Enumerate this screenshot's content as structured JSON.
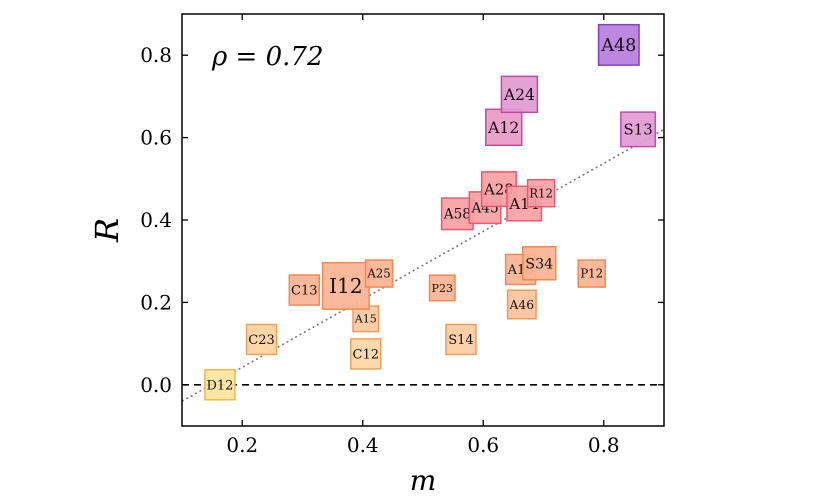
{
  "chart_data": {
    "type": "scatter",
    "title": "",
    "xlabel": "m",
    "ylabel": "R",
    "annotation": "ρ = 0.72",
    "xlim": [
      0.1,
      0.9
    ],
    "ylim": [
      -0.1,
      0.9
    ],
    "xticks": [
      0.2,
      0.4,
      0.6,
      0.8
    ],
    "yticks": [
      0.0,
      0.2,
      0.4,
      0.6,
      0.8
    ],
    "xtick_labels": [
      "0.2",
      "0.4",
      "0.6",
      "0.8"
    ],
    "ytick_labels": [
      "0.0",
      "0.2",
      "0.4",
      "0.6",
      "0.8"
    ],
    "grid": false,
    "reference_line_y": 0.0,
    "fit_line": {
      "x0": 0.1,
      "y0": -0.04,
      "x1": 0.9,
      "y1": 0.62
    },
    "points": [
      {
        "label": "D12",
        "x": 0.163,
        "y": 0.0,
        "size": 1.0,
        "color": "#fde5a0",
        "edge": "#f2b84a"
      },
      {
        "label": "C23",
        "x": 0.232,
        "y": 0.11,
        "size": 1.0,
        "color": "#fdd2a0",
        "edge": "#f0a25a"
      },
      {
        "label": "C12",
        "x": 0.405,
        "y": 0.075,
        "size": 1.0,
        "color": "#fdd6a4",
        "edge": "#f0a25a"
      },
      {
        "label": "A15",
        "x": 0.405,
        "y": 0.16,
        "size": 0.85,
        "color": "#fcc8a0",
        "edge": "#ef9b5a"
      },
      {
        "label": "S14",
        "x": 0.563,
        "y": 0.11,
        "size": 1.0,
        "color": "#fdcca0",
        "edge": "#ef9b5a"
      },
      {
        "label": "C13",
        "x": 0.303,
        "y": 0.23,
        "size": 1.0,
        "color": "#fbb394",
        "edge": "#ee8a55"
      },
      {
        "label": "I12",
        "x": 0.372,
        "y": 0.24,
        "size": 1.55,
        "color": "#fbb394",
        "edge": "#ee8a55"
      },
      {
        "label": "A25",
        "x": 0.427,
        "y": 0.27,
        "size": 0.9,
        "color": "#fbb394",
        "edge": "#ee8a55"
      },
      {
        "label": "P23",
        "x": 0.532,
        "y": 0.235,
        "size": 0.85,
        "color": "#fbb394",
        "edge": "#ee8a55"
      },
      {
        "label": "A46",
        "x": 0.664,
        "y": 0.195,
        "size": 0.95,
        "color": "#fcc2a0",
        "edge": "#ef9b5a"
      },
      {
        "label": "A18",
        "x": 0.662,
        "y": 0.28,
        "size": 1.0,
        "color": "#fbb394",
        "edge": "#ee8a55"
      },
      {
        "label": "S34",
        "x": 0.693,
        "y": 0.295,
        "size": 1.1,
        "color": "#fbb394",
        "edge": "#ee8a55"
      },
      {
        "label": "P12",
        "x": 0.78,
        "y": 0.27,
        "size": 0.9,
        "color": "#fbb394",
        "edge": "#ee8a55"
      },
      {
        "label": "A58",
        "x": 0.557,
        "y": 0.415,
        "size": 1.05,
        "color": "#f7a1a4",
        "edge": "#e8596f"
      },
      {
        "label": "A45",
        "x": 0.603,
        "y": 0.43,
        "size": 1.05,
        "color": "#f7a1a4",
        "edge": "#e8596f"
      },
      {
        "label": "A28",
        "x": 0.626,
        "y": 0.475,
        "size": 1.15,
        "color": "#f7a1a4",
        "edge": "#e8596f"
      },
      {
        "label": "A14",
        "x": 0.668,
        "y": 0.44,
        "size": 1.15,
        "color": "#f7a1a4",
        "edge": "#e8596f"
      },
      {
        "label": "R12",
        "x": 0.696,
        "y": 0.465,
        "size": 0.9,
        "color": "#f7a1a4",
        "edge": "#e8596f"
      },
      {
        "label": "A12",
        "x": 0.634,
        "y": 0.625,
        "size": 1.2,
        "color": "#e89ac6",
        "edge": "#c64aa3"
      },
      {
        "label": "A24",
        "x": 0.66,
        "y": 0.705,
        "size": 1.2,
        "color": "#e09ad0",
        "edge": "#bd4bac"
      },
      {
        "label": "S13",
        "x": 0.857,
        "y": 0.62,
        "size": 1.15,
        "color": "#e29ad4",
        "edge": "#c04bb4"
      },
      {
        "label": "A48",
        "x": 0.825,
        "y": 0.825,
        "size": 1.35,
        "color": "#b57ddc",
        "edge": "#8a3fc2"
      }
    ]
  }
}
